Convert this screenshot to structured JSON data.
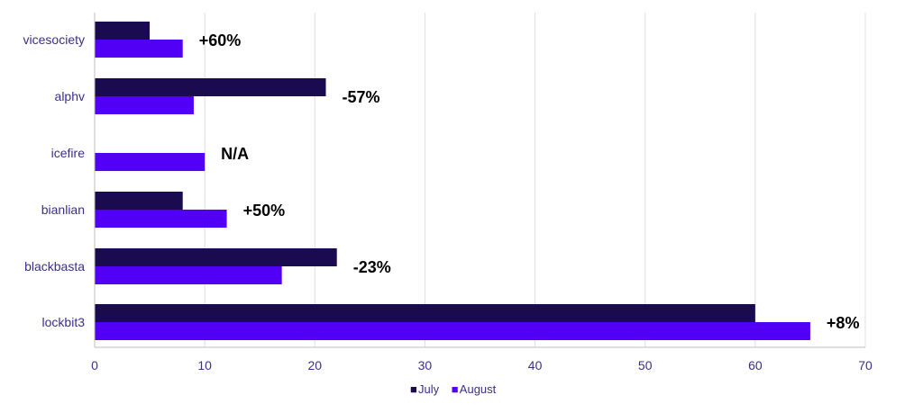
{
  "chart_data": {
    "type": "bar",
    "orientation": "horizontal",
    "title": "",
    "xlabel": "",
    "ylabel": "",
    "categories": [
      "vicesociety",
      "alphv",
      "icefire",
      "bianlian",
      "blackbasta",
      "lockbit3"
    ],
    "series": [
      {
        "name": "July",
        "color": "#1a0a4f",
        "values": [
          5,
          21,
          0,
          8,
          22,
          60
        ]
      },
      {
        "name": "August",
        "color": "#5200f5",
        "values": [
          8,
          9,
          10,
          12,
          17,
          65
        ]
      }
    ],
    "annotations": [
      "+60%",
      "-57%",
      "N/A",
      "+50%",
      "-23%",
      "+8%"
    ],
    "xlim": [
      0,
      70
    ],
    "xticks": [
      0,
      10,
      20,
      30,
      40,
      50,
      60,
      70
    ],
    "grid": true,
    "legend_position": "bottom",
    "legend_marker": "■",
    "axis_color": "#bdbdbd",
    "grid_color": "#dcdcec",
    "label_color": "#3a2f8a"
  }
}
